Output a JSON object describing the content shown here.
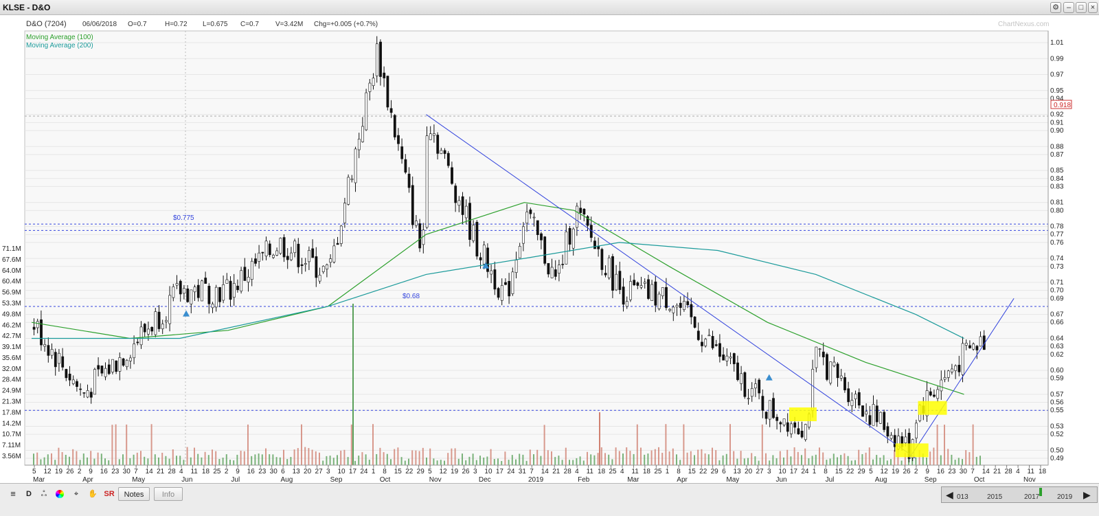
{
  "window": {
    "title": "KLSE - D&O"
  },
  "header": {
    "stock": "D&O (7204)",
    "date": "06/06/2018",
    "open": "O=0.7",
    "high": "H=0.72",
    "low": "L=0.675",
    "close": "C=0.7",
    "volume": "V=3.42M",
    "change": "Chg=+0.005 (+0.7%)",
    "watermark": "ChartNexus.com"
  },
  "legend": [
    "Moving Average (100)",
    "Moving Average (200)"
  ],
  "price_axis": [
    "1.01",
    "0.99",
    "0.97",
    "0.95",
    "0.94",
    "0.92",
    "0.91",
    "0.90",
    "0.88",
    "0.87",
    "0.85",
    "0.84",
    "0.83",
    "0.81",
    "0.80",
    "0.78",
    "0.77",
    "0.76",
    "0.74",
    "0.73",
    "0.71",
    "0.70",
    "0.69",
    "0.67",
    "0.66",
    "0.64",
    "0.63",
    "0.62",
    "0.60",
    "0.59",
    "0.57",
    "0.56",
    "0.55",
    "0.53",
    "0.52",
    "0.50",
    "0.49"
  ],
  "volume_axis": [
    "71.1M",
    "67.6M",
    "64.0M",
    "60.4M",
    "56.9M",
    "53.3M",
    "49.8M",
    "46.2M",
    "42.7M",
    "39.1M",
    "35.6M",
    "32.0M",
    "28.4M",
    "24.9M",
    "21.3M",
    "17.8M",
    "14.2M",
    "10.7M",
    "7.11M",
    "3.56M"
  ],
  "price_tag": "0.918",
  "annotations": [
    "$0.775",
    "$0.68"
  ],
  "x_days": [
    "5",
    "12",
    "19",
    "26",
    "2",
    "9",
    "16",
    "23",
    "30",
    "7",
    "14",
    "21",
    "28",
    "4",
    "11",
    "18",
    "25",
    "2",
    "9",
    "16",
    "23",
    "30",
    "6",
    "13",
    "20",
    "27",
    "3",
    "10",
    "17",
    "24",
    "1",
    "8",
    "15",
    "22",
    "29",
    "5",
    "12",
    "19",
    "26",
    "3",
    "10",
    "17",
    "24",
    "31",
    "7",
    "14",
    "21",
    "28",
    "4",
    "11",
    "18",
    "25",
    "4",
    "11",
    "18",
    "25",
    "1",
    "8",
    "15",
    "22",
    "29",
    "6",
    "13",
    "20",
    "27",
    "3",
    "10",
    "17",
    "24",
    "1",
    "8",
    "15",
    "22",
    "29",
    "5",
    "12",
    "19",
    "26",
    "2",
    "9",
    "16",
    "23",
    "30",
    "7",
    "14",
    "21",
    "28",
    "4",
    "11",
    "18"
  ],
  "x_months": [
    "Mar",
    "Apr",
    "May",
    "Jun",
    "Jul",
    "Aug",
    "Sep",
    "Oct",
    "Nov",
    "Dec",
    "2019",
    "Feb",
    "Mar",
    "Apr",
    "May",
    "Jun",
    "Jul",
    "Aug",
    "Sep",
    "Oct",
    "Nov"
  ],
  "toolbar": {
    "notes": "Notes",
    "info": "Info",
    "sr": "SR"
  },
  "navigator_years": [
    "013",
    "2015",
    "2017",
    "2019"
  ],
  "colors": {
    "ma100": "#2ca02c",
    "ma200": "#1a9a9a",
    "trendline": "#3344dd",
    "highlight": "#ffff00",
    "volume_up": "#d08070",
    "volume_down": "#5aa05a",
    "support_dash": "#3344dd"
  },
  "chart_data": {
    "type": "candlestick",
    "symbol": "D&O (7204)",
    "exchange": "KLSE",
    "period": "2018-03 to 2019-11 (weekly/daily)",
    "ylim": [
      0.49,
      1.01
    ],
    "price_trend_points": [
      {
        "date": "2018-03",
        "price": 0.66
      },
      {
        "date": "2018-04",
        "price": 0.57
      },
      {
        "date": "2018-05",
        "price": 0.63
      },
      {
        "date": "2018-06",
        "price": 0.7
      },
      {
        "date": "2018-07",
        "price": 0.7
      },
      {
        "date": "2018-08",
        "price": 0.76
      },
      {
        "date": "2018-09",
        "price": 0.72
      },
      {
        "date": "2018-10",
        "price": 1.0
      },
      {
        "date": "2018-10-29",
        "price": 0.74
      },
      {
        "date": "2018-11",
        "price": 0.92
      },
      {
        "date": "2018-12",
        "price": 0.76
      },
      {
        "date": "2018-12-20",
        "price": 0.69
      },
      {
        "date": "2019-01",
        "price": 0.8
      },
      {
        "date": "2019-01-20",
        "price": 0.71
      },
      {
        "date": "2019-02",
        "price": 0.8
      },
      {
        "date": "2019-03",
        "price": 0.7
      },
      {
        "date": "2019-04",
        "price": 0.69
      },
      {
        "date": "2019-05",
        "price": 0.62
      },
      {
        "date": "2019-06",
        "price": 0.55
      },
      {
        "date": "2019-06-24",
        "price": 0.53
      },
      {
        "date": "2019-07",
        "price": 0.62
      },
      {
        "date": "2019-08",
        "price": 0.55
      },
      {
        "date": "2019-08-28",
        "price": 0.5
      },
      {
        "date": "2019-09",
        "price": 0.55
      },
      {
        "date": "2019-10",
        "price": 0.62
      },
      {
        "date": "2019-10-14",
        "price": 0.64
      }
    ],
    "ma100": [
      {
        "date": "2018-03",
        "price": 0.66
      },
      {
        "date": "2018-05",
        "price": 0.64
      },
      {
        "date": "2018-07",
        "price": 0.65
      },
      {
        "date": "2018-09",
        "price": 0.68
      },
      {
        "date": "2018-11",
        "price": 0.77
      },
      {
        "date": "2019-01",
        "price": 0.81
      },
      {
        "date": "2019-02",
        "price": 0.8
      },
      {
        "date": "2019-04",
        "price": 0.73
      },
      {
        "date": "2019-06",
        "price": 0.66
      },
      {
        "date": "2019-08",
        "price": 0.61
      },
      {
        "date": "2019-10",
        "price": 0.57
      }
    ],
    "ma200": [
      {
        "date": "2018-03",
        "price": 0.64
      },
      {
        "date": "2018-06",
        "price": 0.64
      },
      {
        "date": "2018-09",
        "price": 0.68
      },
      {
        "date": "2018-11",
        "price": 0.72
      },
      {
        "date": "2019-01",
        "price": 0.74
      },
      {
        "date": "2019-03",
        "price": 0.76
      },
      {
        "date": "2019-05",
        "price": 0.75
      },
      {
        "date": "2019-07",
        "price": 0.72
      },
      {
        "date": "2019-09",
        "price": 0.67
      },
      {
        "date": "2019-10",
        "price": 0.64
      }
    ],
    "horizontal_levels": [
      {
        "price": 0.918,
        "label": "0.918"
      },
      {
        "price": 0.783,
        "label": ""
      },
      {
        "price": 0.775,
        "label": "$0.775"
      },
      {
        "price": 0.68,
        "label": "$0.68"
      },
      {
        "price": 0.55,
        "label": ""
      }
    ],
    "trendlines": [
      {
        "from": {
          "date": "2018-11",
          "price": 0.92
        },
        "to": {
          "date": "2019-09",
          "price": 0.49
        }
      },
      {
        "from": {
          "date": "2019-08-28",
          "price": 0.49
        },
        "to": {
          "date": "2019-11",
          "price": 0.69
        }
      }
    ],
    "volume_ylim": [
      0,
      71.1
    ],
    "volume_unit": "M"
  }
}
